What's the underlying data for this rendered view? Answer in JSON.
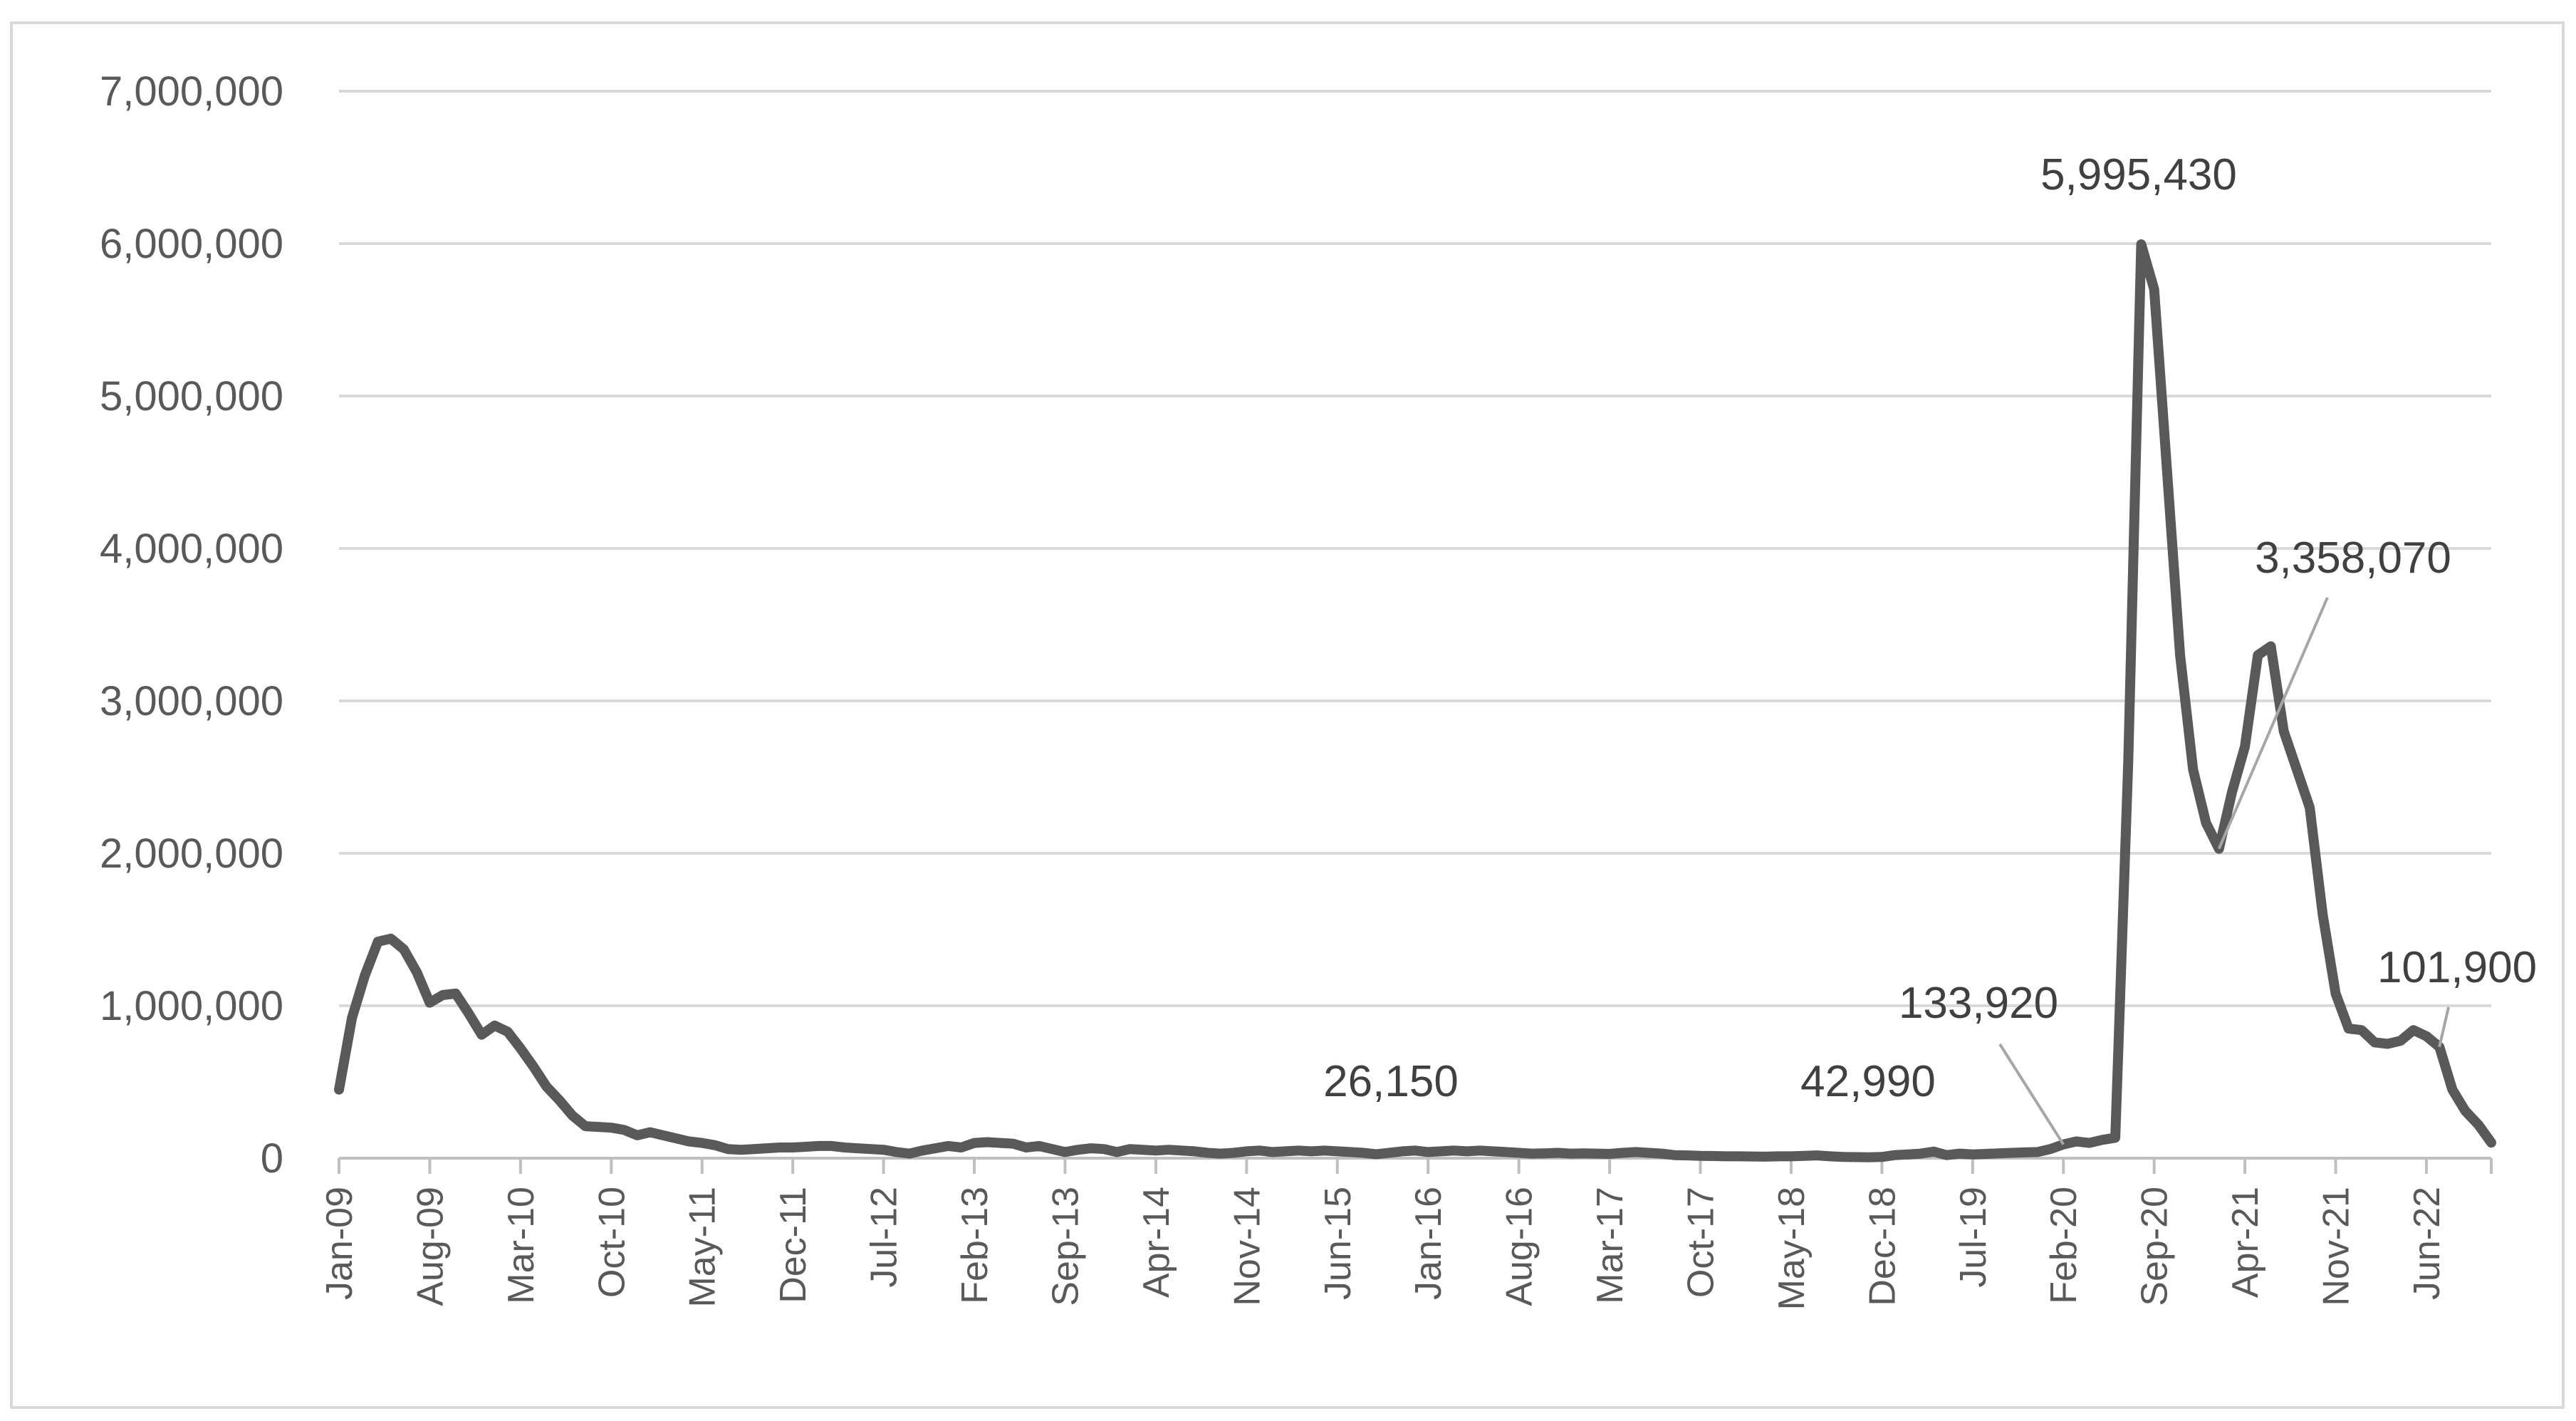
{
  "chart_data": {
    "type": "line",
    "title": "",
    "xlabel": "",
    "ylabel": "",
    "ylim": [
      0,
      7000000
    ],
    "y_ticks": [
      0,
      1000000,
      2000000,
      3000000,
      4000000,
      5000000,
      6000000,
      7000000
    ],
    "y_tick_labels": [
      "0",
      "1,000,000",
      "2,000,000",
      "3,000,000",
      "4,000,000",
      "5,000,000",
      "6,000,000",
      "7,000,000"
    ],
    "x_tick_labels": [
      "Jan-09",
      "Aug-09",
      "Mar-10",
      "Oct-10",
      "May-11",
      "Dec-11",
      "Jul-12",
      "Feb-13",
      "Sep-13",
      "Apr-14",
      "Nov-14",
      "Jun-15",
      "Jan-16",
      "Aug-16",
      "Mar-17",
      "Oct-17",
      "May-18",
      "Dec-18",
      "Jul-19",
      "Feb-20",
      "Sep-20",
      "Apr-21",
      "Nov-21",
      "Jun-22"
    ],
    "x_start": "Jan-09",
    "x_end": "Jul-22",
    "grid": true,
    "line_color": "#595959",
    "series": [
      {
        "values": [
          450000,
          920000,
          1200000,
          1420000,
          1440000,
          1370000,
          1220000,
          1020000,
          1070000,
          1080000,
          950000,
          810000,
          870000,
          830000,
          720000,
          600000,
          470000,
          380000,
          280000,
          210000,
          205000,
          200000,
          185000,
          150000,
          170000,
          150000,
          130000,
          110000,
          100000,
          85000,
          60000,
          55000,
          60000,
          65000,
          70000,
          70000,
          75000,
          80000,
          80000,
          70000,
          65000,
          60000,
          55000,
          40000,
          30000,
          50000,
          65000,
          80000,
          70000,
          100000,
          105000,
          100000,
          95000,
          70000,
          80000,
          60000,
          40000,
          55000,
          65000,
          60000,
          40000,
          60000,
          55000,
          50000,
          55000,
          50000,
          45000,
          35000,
          30000,
          35000,
          45000,
          50000,
          40000,
          45000,
          50000,
          45000,
          50000,
          45000,
          40000,
          35000,
          26150,
          35000,
          45000,
          50000,
          40000,
          45000,
          50000,
          45000,
          50000,
          45000,
          40000,
          35000,
          30000,
          32000,
          35000,
          30000,
          32000,
          30000,
          28000,
          35000,
          40000,
          35000,
          30000,
          20000,
          18000,
          15000,
          14000,
          12000,
          12000,
          11000,
          10000,
          12000,
          12000,
          15000,
          18000,
          12000,
          8000,
          7000,
          6000,
          8000,
          20000,
          25000,
          30000,
          42990,
          20000,
          30000,
          25000,
          28000,
          32000,
          35000,
          38000,
          40000,
          60000,
          90000,
          110000,
          100000,
          120000,
          133920,
          2600000,
          5995430,
          5700000,
          4500000,
          3300000,
          2550000,
          2200000,
          2030000,
          2400000,
          2700000,
          3300000,
          3358070,
          2800000,
          2550000,
          2300000,
          1600000,
          1080000,
          850000,
          840000,
          760000,
          750000,
          770000,
          840000,
          800000,
          730000,
          450000,
          310000,
          220000,
          101900
        ]
      }
    ],
    "annotations": [
      {
        "label": "5,995,430",
        "index": 135
      },
      {
        "label": "3,358,070",
        "index": 145
      },
      {
        "label": "133,920",
        "index": 133
      },
      {
        "label": "42,990",
        "index": 119
      },
      {
        "label": "26,150",
        "index": 76
      },
      {
        "label": "101,900",
        "index": 162
      }
    ]
  }
}
